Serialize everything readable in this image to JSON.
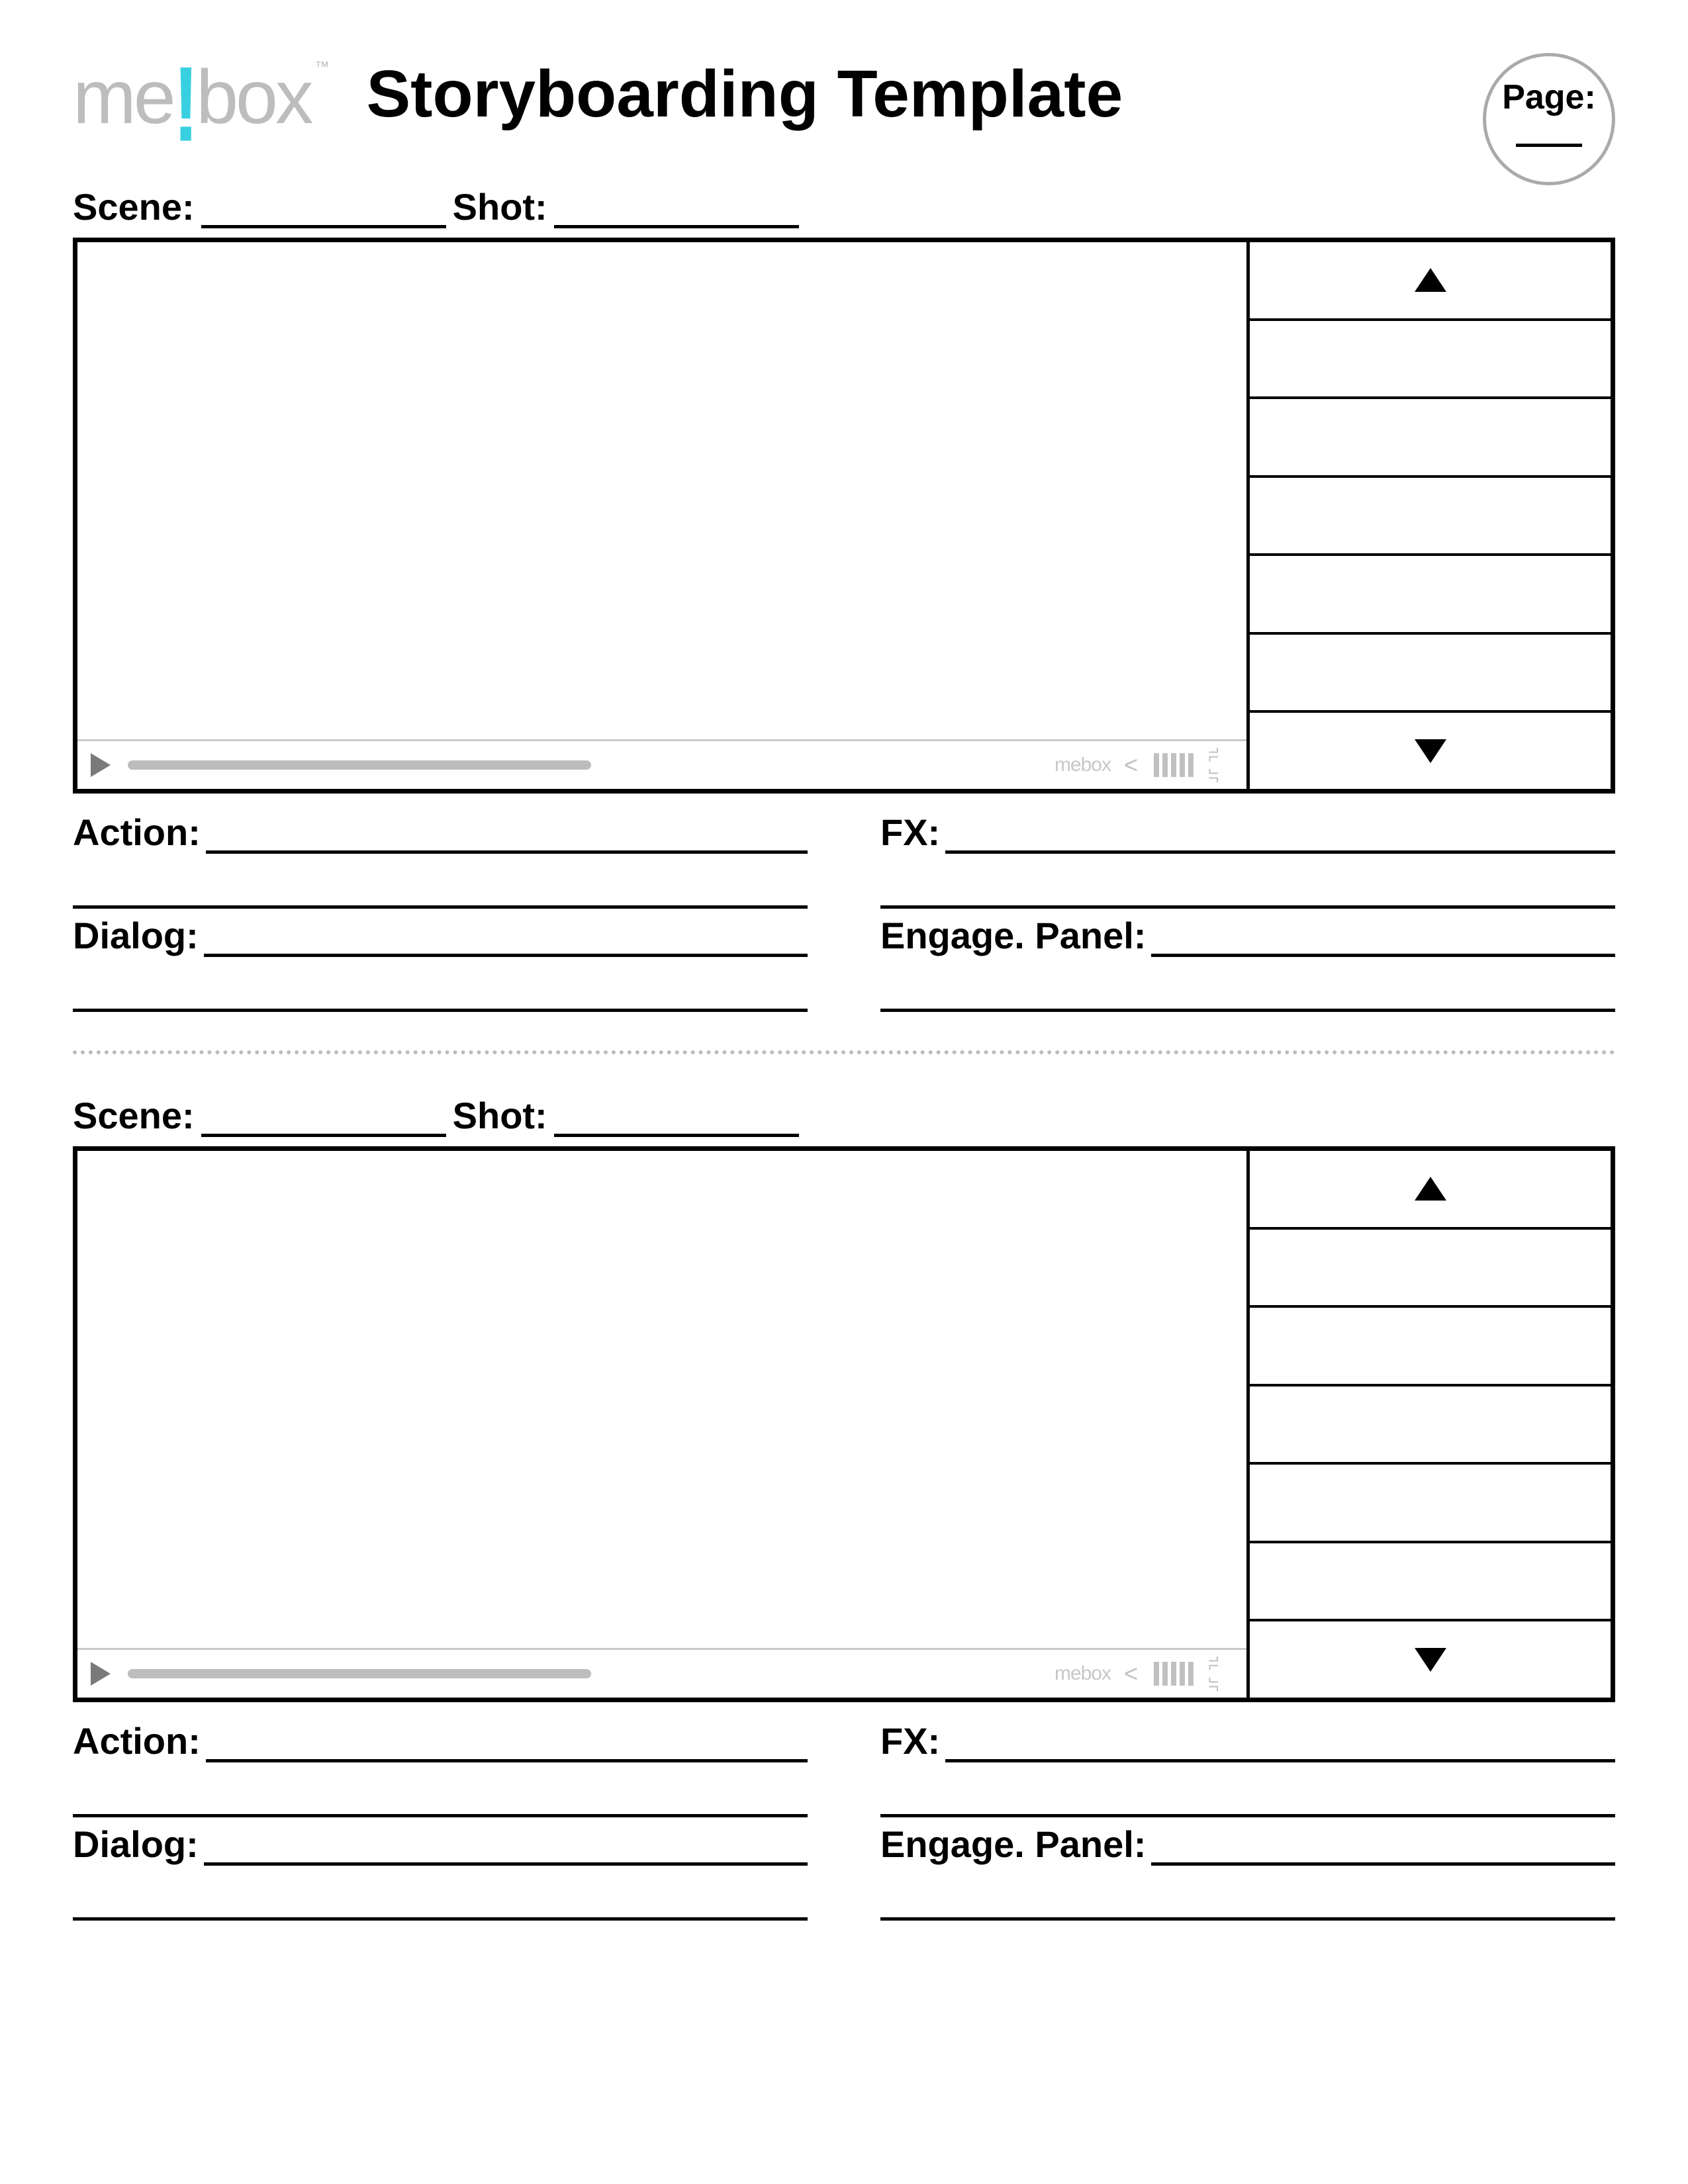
{
  "header": {
    "logo_text_1": "me",
    "logo_excl": "!",
    "logo_text_2": "box",
    "logo_tm": "™",
    "title": "Storyboarding Template",
    "page_label": "Page:",
    "page_value": ""
  },
  "labels": {
    "scene": "Scene:",
    "shot": "Shot:",
    "action": "Action:",
    "dialog": "Dialog:",
    "fx": "FX:",
    "engage": "Engage. Panel:"
  },
  "playbar": {
    "mini_logo": "mebox"
  },
  "panels_per_block": 7,
  "blocks": 2,
  "colors": {
    "logo_gray": "#bdbdbd",
    "logo_accent": "#38d0e0",
    "line": "#000000",
    "ui_gray": "#c0c0c0",
    "divider": "#bcbcbc",
    "circle": "#aaaaaa"
  }
}
